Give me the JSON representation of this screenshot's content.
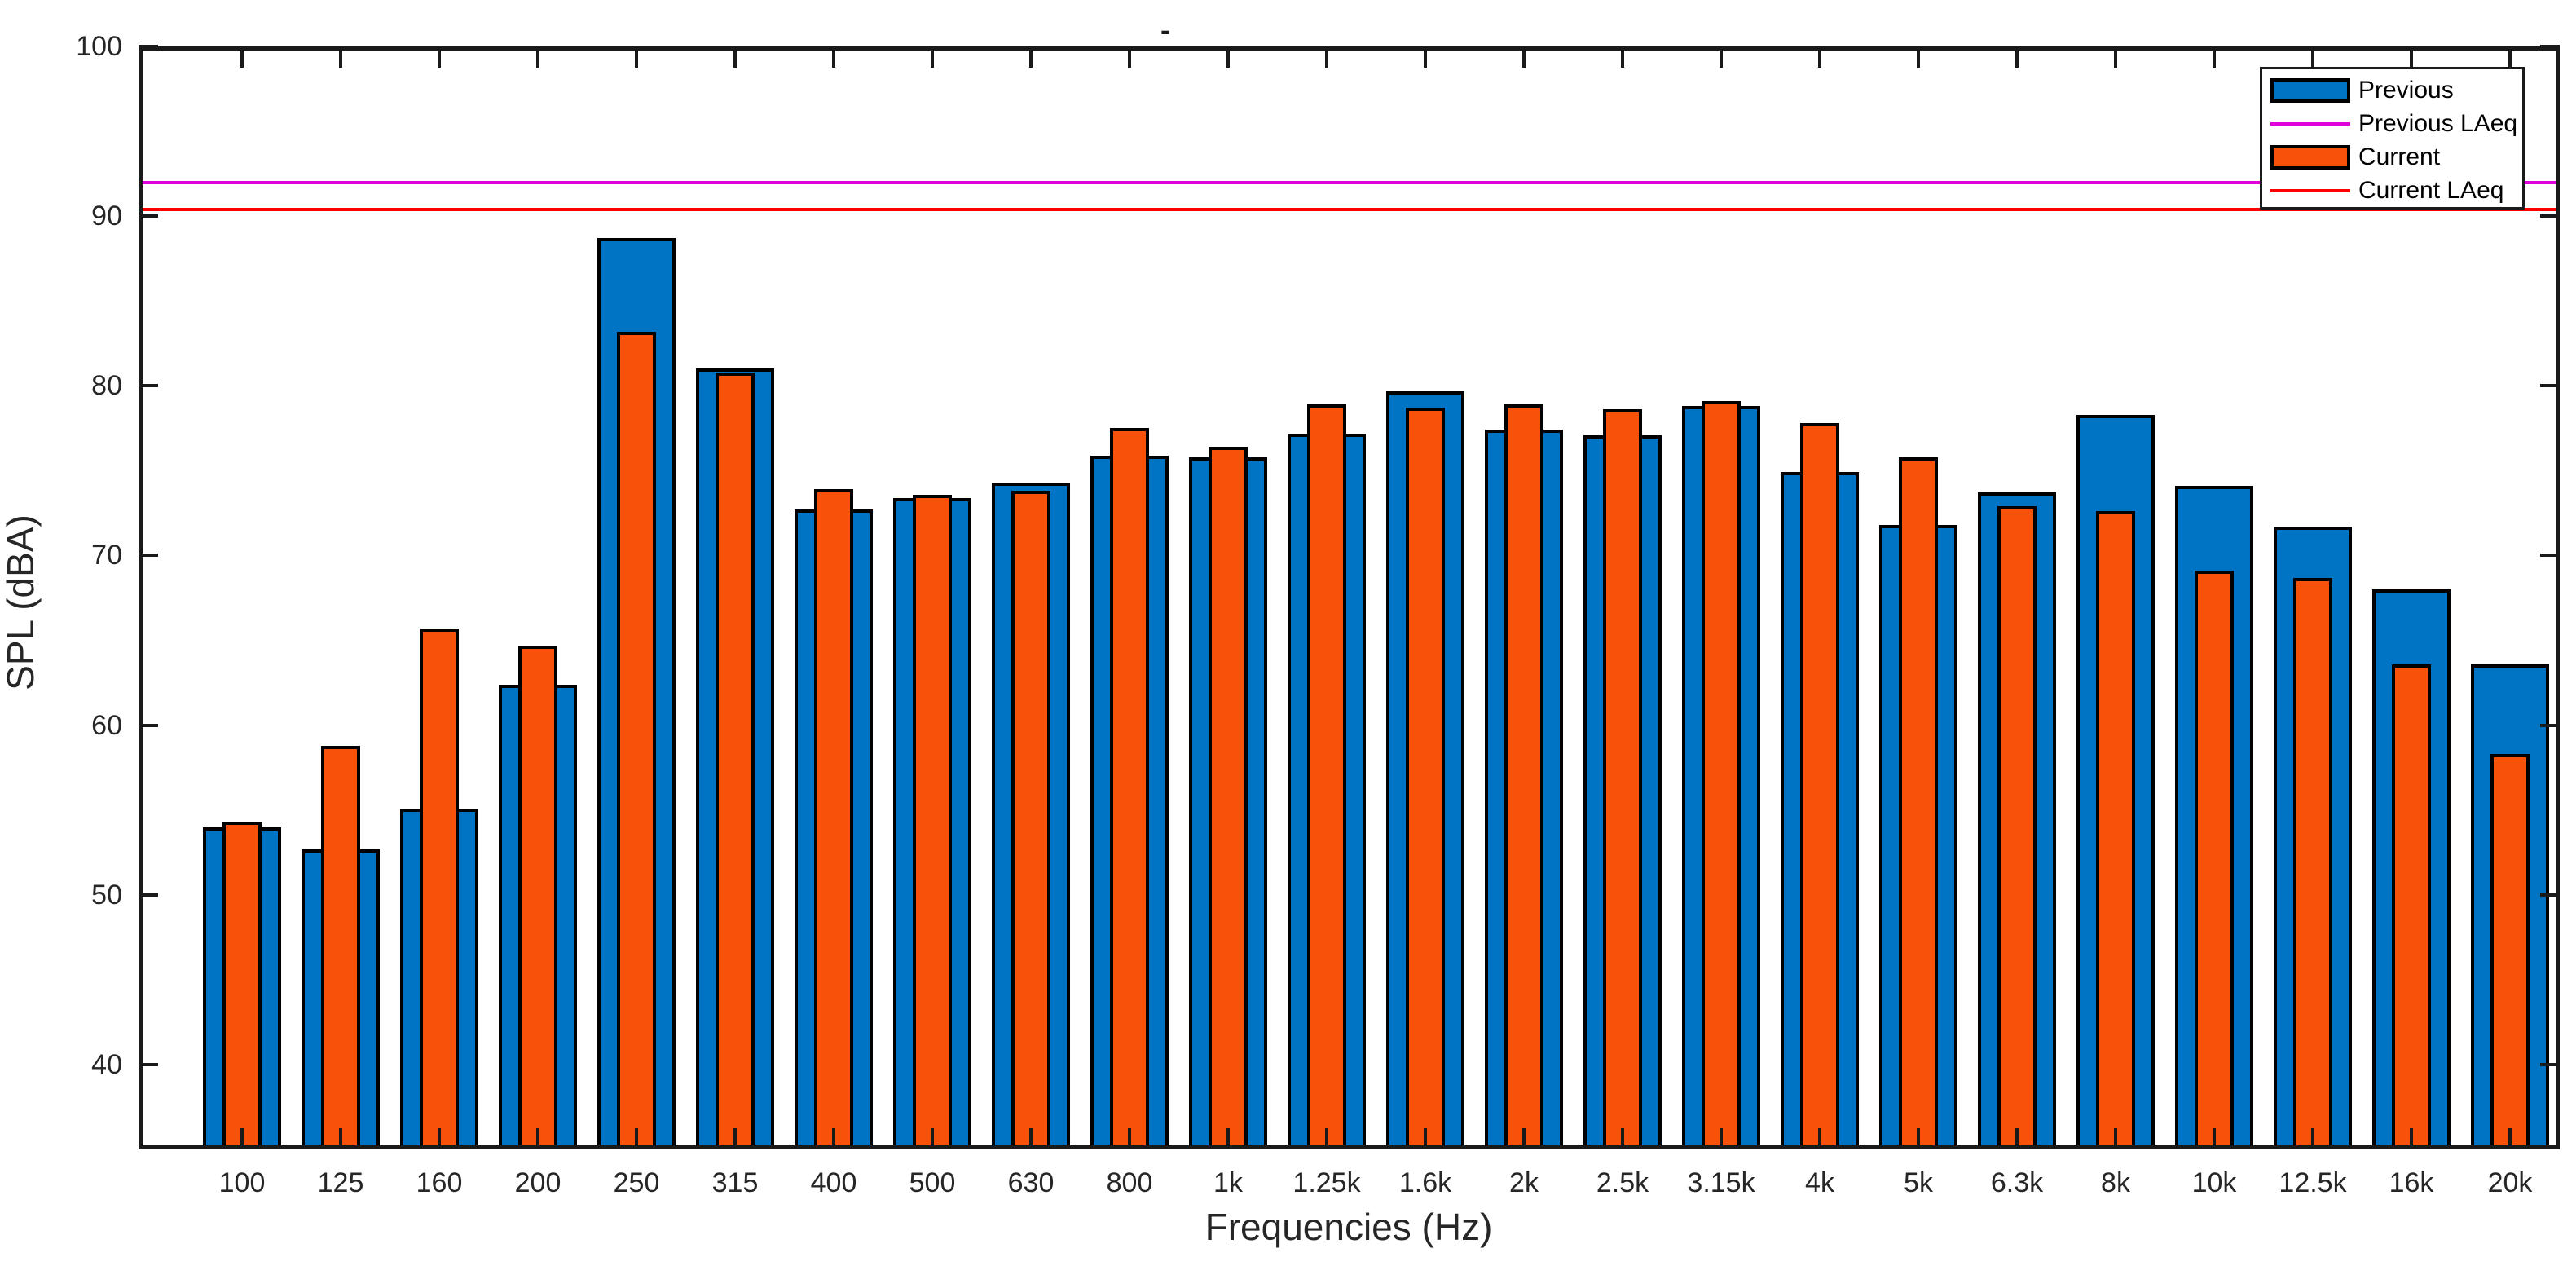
{
  "title_mark": "-",
  "axes": {
    "ylabel": "SPL (dBA)",
    "xlabel": "Frequencies (Hz)",
    "y_ticks": [
      40,
      50,
      60,
      70,
      80,
      90,
      100
    ],
    "y_min": 35,
    "y_max": 100
  },
  "legend": [
    {
      "label": "Previous",
      "type": "patch",
      "color": "#0074C4"
    },
    {
      "label": "Previous LAeq",
      "type": "line",
      "color": "#E000D8"
    },
    {
      "label": "Current",
      "type": "patch",
      "color": "#F85109"
    },
    {
      "label": "Current LAeq",
      "type": "line",
      "color": "#FF0000"
    }
  ],
  "chart_data": {
    "type": "bar",
    "title": "-",
    "xlabel": "Frequencies (Hz)",
    "ylabel": "SPL (dBA)",
    "ylim": [
      35,
      100
    ],
    "grid": false,
    "legend_position": "top-right",
    "categories": [
      "100",
      "125",
      "160",
      "200",
      "250",
      "315",
      "400",
      "500",
      "630",
      "800",
      "1k",
      "1.25k",
      "1.6k",
      "2k",
      "2.5k",
      "3.15k",
      "4k",
      "5k",
      "6.3k",
      "8k",
      "10k",
      "12.5k",
      "16k",
      "20k"
    ],
    "series": [
      {
        "name": "Previous",
        "color": "#0074C4",
        "edge_color": "#000000",
        "values": [
          54.0,
          52.7,
          55.1,
          62.4,
          88.7,
          81.0,
          72.7,
          73.4,
          74.3,
          75.9,
          75.8,
          77.2,
          79.7,
          77.4,
          77.1,
          78.8,
          74.9,
          71.8,
          73.7,
          78.3,
          74.1,
          71.7,
          68.0,
          63.6
        ]
      },
      {
        "name": "Current",
        "color": "#F85109",
        "edge_color": "#000000",
        "values": [
          54.3,
          58.8,
          65.7,
          64.7,
          83.2,
          80.8,
          73.9,
          73.6,
          73.8,
          77.5,
          76.4,
          78.9,
          78.7,
          78.9,
          78.6,
          79.1,
          77.8,
          75.8,
          72.9,
          72.6,
          69.1,
          68.7,
          63.6,
          58.3
        ]
      }
    ],
    "reference_lines": [
      {
        "name": "Previous LAeq",
        "value": 92.0,
        "color": "#E000D8"
      },
      {
        "name": "Current LAeq",
        "value": 90.4,
        "color": "#FF0000"
      }
    ]
  }
}
